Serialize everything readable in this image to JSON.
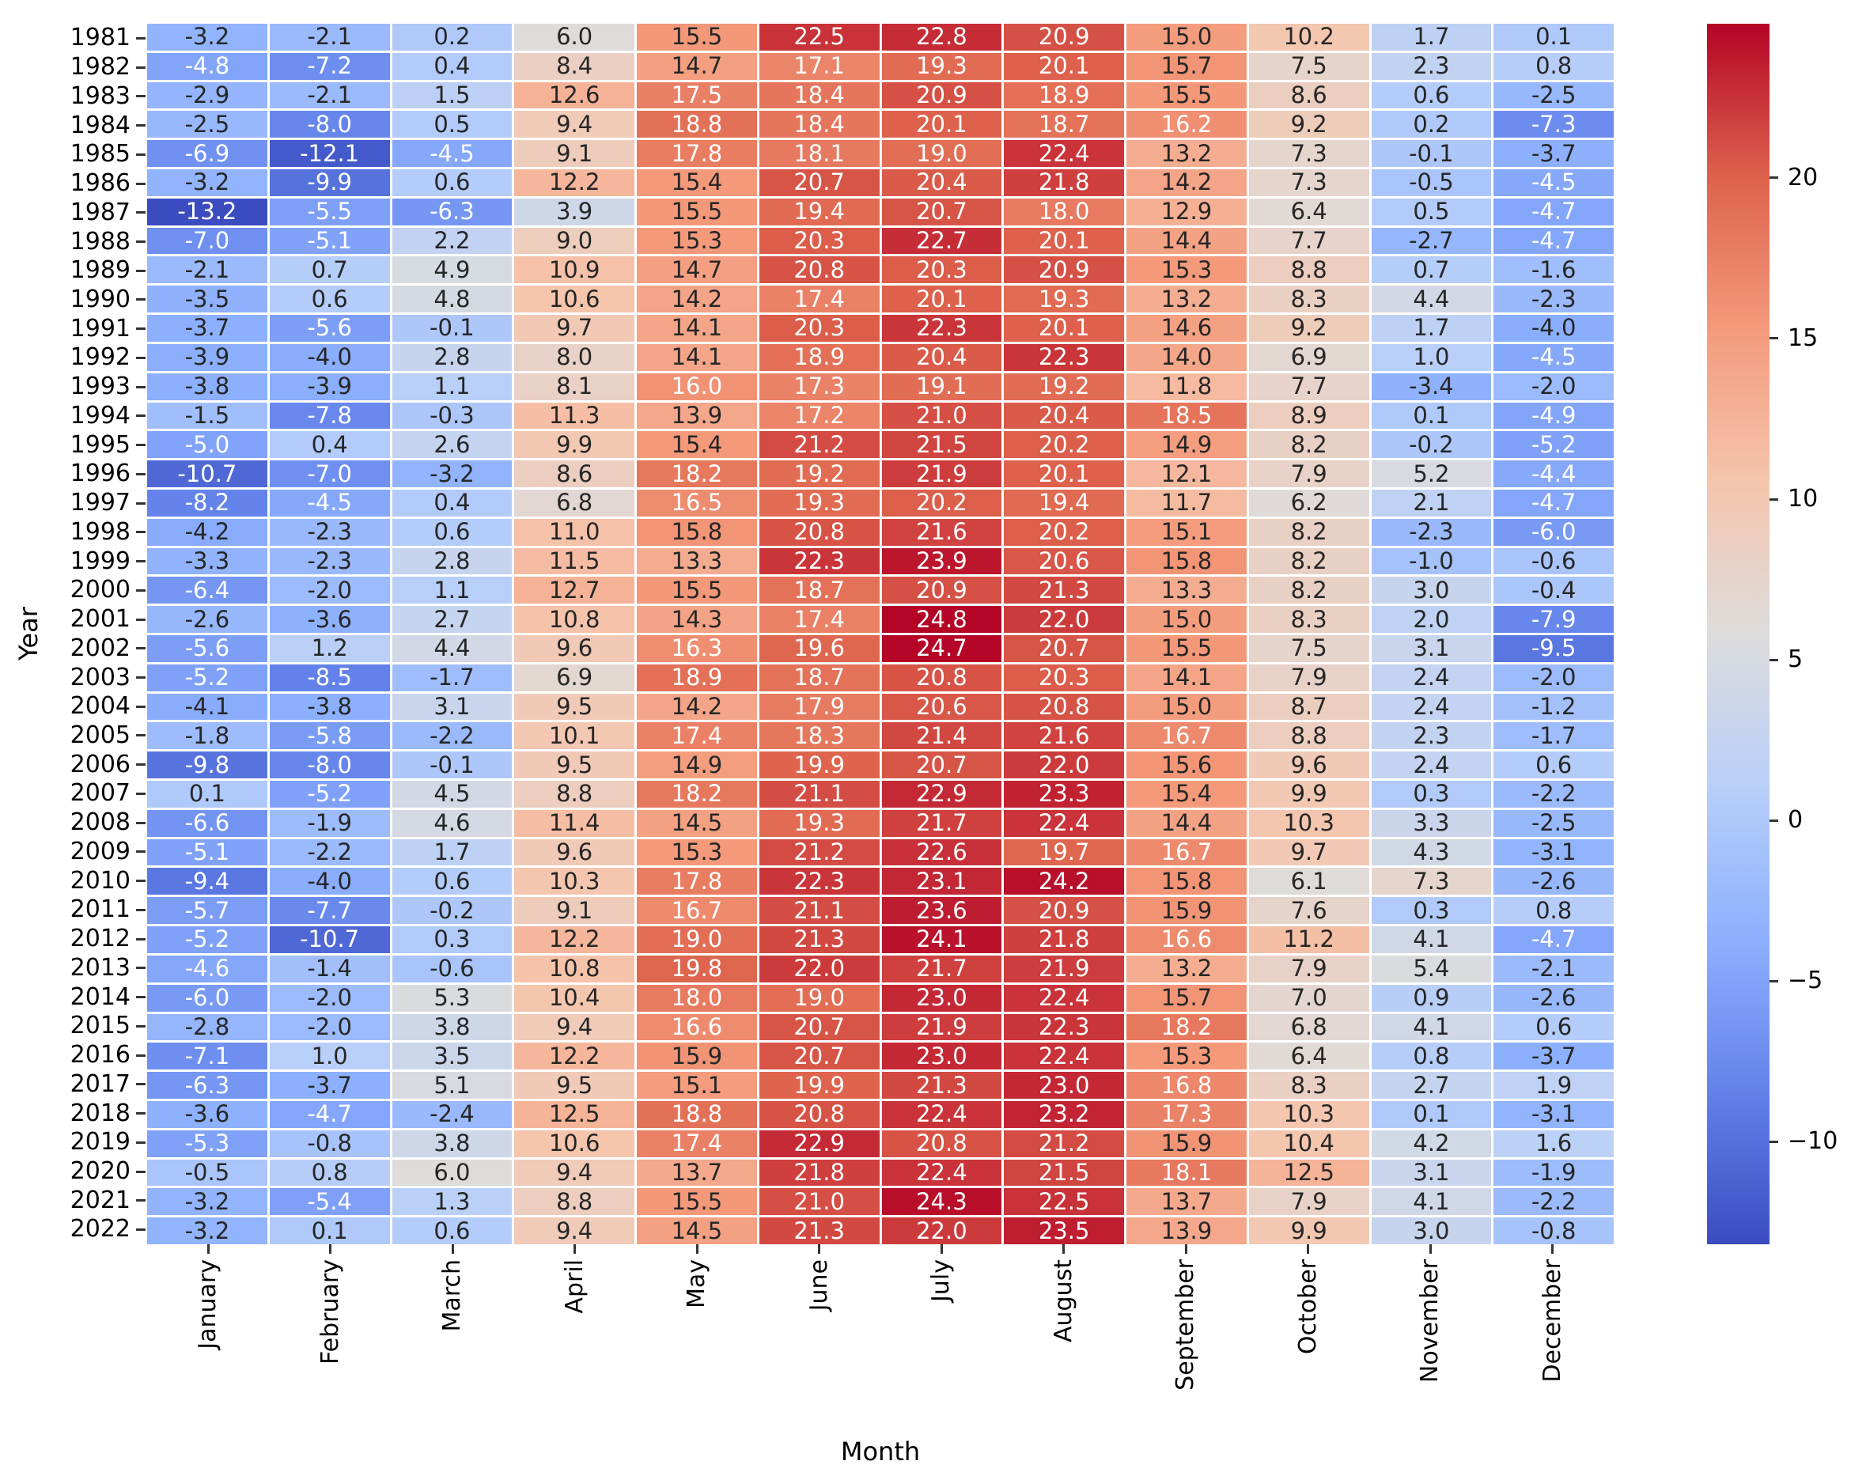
{
  "chart_data": {
    "type": "heatmap",
    "xlabel": "Month",
    "ylabel": "Year",
    "colormap": "coolwarm",
    "vmin": -13.2,
    "vmax": 24.8,
    "grid_gap_color": "#ffffff",
    "annotation_dark_text_color": "#262626",
    "annotation_light_text_color": "#ffffff",
    "tick_color": "#333333",
    "colormap_anchors": [
      {
        "t": 0.0,
        "color": "#3b4cc0"
      },
      {
        "t": 0.125,
        "color": "#6282ea"
      },
      {
        "t": 0.25,
        "color": "#8db0fe"
      },
      {
        "t": 0.375,
        "color": "#b8cff9"
      },
      {
        "t": 0.5,
        "color": "#dddcdc"
      },
      {
        "t": 0.625,
        "color": "#f5c5ad"
      },
      {
        "t": 0.75,
        "color": "#f49a7b"
      },
      {
        "t": 0.875,
        "color": "#dd624c"
      },
      {
        "t": 1.0,
        "color": "#b40426"
      }
    ],
    "colorbar_ticks": [
      {
        "value": 20,
        "label": "20"
      },
      {
        "value": 15,
        "label": "15"
      },
      {
        "value": 10,
        "label": "10"
      },
      {
        "value": 5,
        "label": "5"
      },
      {
        "value": 0,
        "label": "0"
      },
      {
        "value": -5,
        "label": "−5"
      },
      {
        "value": -10,
        "label": "−10"
      }
    ],
    "columns": [
      "January",
      "February",
      "March",
      "April",
      "May",
      "June",
      "July",
      "August",
      "September",
      "October",
      "November",
      "December"
    ],
    "rows": [
      "1981",
      "1982",
      "1983",
      "1984",
      "1985",
      "1986",
      "1987",
      "1988",
      "1989",
      "1990",
      "1991",
      "1992",
      "1993",
      "1994",
      "1995",
      "1996",
      "1997",
      "1998",
      "1999",
      "2000",
      "2001",
      "2002",
      "2003",
      "2004",
      "2005",
      "2006",
      "2007",
      "2008",
      "2009",
      "2010",
      "2011",
      "2012",
      "2013",
      "2014",
      "2015",
      "2016",
      "2017",
      "2018",
      "2019",
      "2020",
      "2021",
      "2022"
    ],
    "values": [
      [
        -3.2,
        -2.1,
        0.2,
        6.0,
        15.5,
        22.5,
        22.8,
        20.9,
        15.0,
        10.2,
        1.7,
        0.1
      ],
      [
        -4.8,
        -7.2,
        0.4,
        8.4,
        14.7,
        17.1,
        19.3,
        20.1,
        15.7,
        7.5,
        2.3,
        0.8
      ],
      [
        -2.9,
        -2.1,
        1.5,
        12.6,
        17.5,
        18.4,
        20.9,
        18.9,
        15.5,
        8.6,
        0.6,
        -2.5
      ],
      [
        -2.5,
        -8.0,
        0.5,
        9.4,
        18.8,
        18.4,
        20.1,
        18.7,
        16.2,
        9.2,
        0.2,
        -7.3
      ],
      [
        -6.9,
        -12.1,
        -4.5,
        9.1,
        17.8,
        18.1,
        19.0,
        22.4,
        13.2,
        7.3,
        -0.1,
        -3.7
      ],
      [
        -3.2,
        -9.9,
        0.6,
        12.2,
        15.4,
        20.7,
        20.4,
        21.8,
        14.2,
        7.3,
        -0.5,
        -4.5
      ],
      [
        -13.2,
        -5.5,
        -6.3,
        3.9,
        15.5,
        19.4,
        20.7,
        18.0,
        12.9,
        6.4,
        0.5,
        -4.7
      ],
      [
        -7.0,
        -5.1,
        2.2,
        9.0,
        15.3,
        20.3,
        22.7,
        20.1,
        14.4,
        7.7,
        -2.7,
        -4.7
      ],
      [
        -2.1,
        0.7,
        4.9,
        10.9,
        14.7,
        20.8,
        20.3,
        20.9,
        15.3,
        8.8,
        0.7,
        -1.6
      ],
      [
        -3.5,
        0.6,
        4.8,
        10.6,
        14.2,
        17.4,
        20.1,
        19.3,
        13.2,
        8.3,
        4.4,
        -2.3
      ],
      [
        -3.7,
        -5.6,
        -0.1,
        9.7,
        14.1,
        20.3,
        22.3,
        20.1,
        14.6,
        9.2,
        1.7,
        -4.0
      ],
      [
        -3.9,
        -4.0,
        2.8,
        8.0,
        14.1,
        18.9,
        20.4,
        22.3,
        14.0,
        6.9,
        1.0,
        -4.5
      ],
      [
        -3.8,
        -3.9,
        1.1,
        8.1,
        16.0,
        17.3,
        19.1,
        19.2,
        11.8,
        7.7,
        -3.4,
        -2.0
      ],
      [
        -1.5,
        -7.8,
        -0.3,
        11.3,
        13.9,
        17.2,
        21.0,
        20.4,
        18.5,
        8.9,
        0.1,
        -4.9
      ],
      [
        -5.0,
        0.4,
        2.6,
        9.9,
        15.4,
        21.2,
        21.5,
        20.2,
        14.9,
        8.2,
        -0.2,
        -5.2
      ],
      [
        -10.7,
        -7.0,
        -3.2,
        8.6,
        18.2,
        19.2,
        21.9,
        20.1,
        12.1,
        7.9,
        5.2,
        -4.4
      ],
      [
        -8.2,
        -4.5,
        0.4,
        6.8,
        16.5,
        19.3,
        20.2,
        19.4,
        11.7,
        6.2,
        2.1,
        -4.7
      ],
      [
        -4.2,
        -2.3,
        0.6,
        11.0,
        15.8,
        20.8,
        21.6,
        20.2,
        15.1,
        8.2,
        -2.3,
        -6.0
      ],
      [
        -3.3,
        -2.3,
        2.8,
        11.5,
        13.3,
        22.3,
        23.9,
        20.6,
        15.8,
        8.2,
        -1.0,
        -0.6
      ],
      [
        -6.4,
        -2.0,
        1.1,
        12.7,
        15.5,
        18.7,
        20.9,
        21.3,
        13.3,
        8.2,
        3.0,
        -0.4
      ],
      [
        -2.6,
        -3.6,
        2.7,
        10.8,
        14.3,
        17.4,
        24.8,
        22.0,
        15.0,
        8.3,
        2.0,
        -7.9
      ],
      [
        -5.6,
        1.2,
        4.4,
        9.6,
        16.3,
        19.6,
        24.7,
        20.7,
        15.5,
        7.5,
        3.1,
        -9.5
      ],
      [
        -5.2,
        -8.5,
        -1.7,
        6.9,
        18.9,
        18.7,
        20.8,
        20.3,
        14.1,
        7.9,
        2.4,
        -2.0
      ],
      [
        -4.1,
        -3.8,
        3.1,
        9.5,
        14.2,
        17.9,
        20.6,
        20.8,
        15.0,
        8.7,
        2.4,
        -1.2
      ],
      [
        -1.8,
        -5.8,
        -2.2,
        10.1,
        17.4,
        18.3,
        21.4,
        21.6,
        16.7,
        8.8,
        2.3,
        -1.7
      ],
      [
        -9.8,
        -8.0,
        -0.1,
        9.5,
        14.9,
        19.9,
        20.7,
        22.0,
        15.6,
        9.6,
        2.4,
        0.6
      ],
      [
        0.1,
        -5.2,
        4.5,
        8.8,
        18.2,
        21.1,
        22.9,
        23.3,
        15.4,
        9.9,
        0.3,
        -2.2
      ],
      [
        -6.6,
        -1.9,
        4.6,
        11.4,
        14.5,
        19.3,
        21.7,
        22.4,
        14.4,
        10.3,
        3.3,
        -2.5
      ],
      [
        -5.1,
        -2.2,
        1.7,
        9.6,
        15.3,
        21.2,
        22.6,
        19.7,
        16.7,
        9.7,
        4.3,
        -3.1
      ],
      [
        -9.4,
        -4.0,
        0.6,
        10.3,
        17.8,
        22.3,
        23.1,
        24.2,
        15.8,
        6.1,
        7.3,
        -2.6
      ],
      [
        -5.7,
        -7.7,
        -0.2,
        9.1,
        16.7,
        21.1,
        23.6,
        20.9,
        15.9,
        7.6,
        0.3,
        0.8
      ],
      [
        -5.2,
        -10.7,
        0.3,
        12.2,
        19.0,
        21.3,
        24.1,
        21.8,
        16.6,
        11.2,
        4.1,
        -4.7
      ],
      [
        -4.6,
        -1.4,
        -0.6,
        10.8,
        19.8,
        22.0,
        21.7,
        21.9,
        13.2,
        7.9,
        5.4,
        -2.1
      ],
      [
        -6.0,
        -2.0,
        5.3,
        10.4,
        18.0,
        19.0,
        23.0,
        22.4,
        15.7,
        7.0,
        0.9,
        -2.6
      ],
      [
        -2.8,
        -2.0,
        3.8,
        9.4,
        16.6,
        20.7,
        21.9,
        22.3,
        18.2,
        6.8,
        4.1,
        0.6
      ],
      [
        -7.1,
        1.0,
        3.5,
        12.2,
        15.9,
        20.7,
        23.0,
        22.4,
        15.3,
        6.4,
        0.8,
        -3.7
      ],
      [
        -6.3,
        -3.7,
        5.1,
        9.5,
        15.1,
        19.9,
        21.3,
        23.0,
        16.8,
        8.3,
        2.7,
        1.9
      ],
      [
        -3.6,
        -4.7,
        -2.4,
        12.5,
        18.8,
        20.8,
        22.4,
        23.2,
        17.3,
        10.3,
        0.1,
        -3.1
      ],
      [
        -5.3,
        -0.8,
        3.8,
        10.6,
        17.4,
        22.9,
        20.8,
        21.2,
        15.9,
        10.4,
        4.2,
        1.6
      ],
      [
        -0.5,
        0.8,
        6.0,
        9.4,
        13.7,
        21.8,
        22.4,
        21.5,
        18.1,
        12.5,
        3.1,
        -1.9
      ],
      [
        -3.2,
        -5.4,
        1.3,
        8.8,
        15.5,
        21.0,
        24.3,
        22.5,
        13.7,
        7.9,
        4.1,
        -2.2
      ],
      [
        -3.2,
        0.1,
        0.6,
        9.4,
        14.5,
        21.3,
        22.0,
        23.5,
        13.9,
        9.9,
        3.0,
        -0.8
      ]
    ]
  }
}
